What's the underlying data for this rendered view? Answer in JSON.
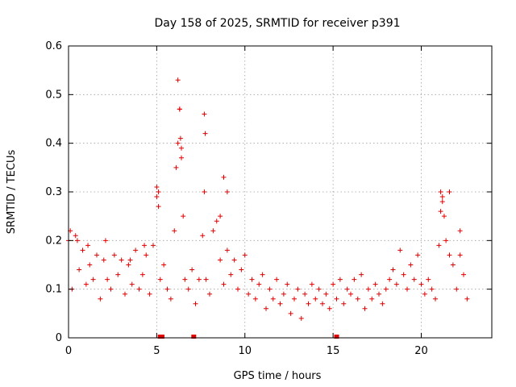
{
  "chart_data": {
    "type": "scatter",
    "title": "Day 158 of 2025, SRMTID for receiver p391",
    "xlabel": "GPS time / hours",
    "ylabel": "SRMTID / TECUs",
    "xlim": [
      0,
      24
    ],
    "ylim": [
      0,
      0.6
    ],
    "x_ticks": [
      0,
      5,
      10,
      15,
      20
    ],
    "x_tick_labels": [
      "0",
      "5",
      "10",
      "15",
      "20"
    ],
    "y_ticks": [
      0,
      0.1,
      0.2,
      0.3,
      0.4,
      0.5,
      0.6
    ],
    "y_tick_labels": [
      "0",
      "0.1",
      "0.2",
      "0.3",
      "0.4",
      "0.5",
      "0.6"
    ],
    "grid": true,
    "marker": "plus",
    "color": "#e00000",
    "series": [
      {
        "name": "SRMTID",
        "x": [
          0.0,
          0.2,
          0.4,
          0.6,
          0.8,
          1.0,
          1.2,
          1.4,
          1.6,
          1.8,
          2.0,
          2.2,
          2.4,
          2.6,
          2.8,
          3.0,
          3.2,
          3.4,
          3.6,
          3.8,
          4.0,
          4.2,
          4.4,
          4.6,
          4.8,
          5.0,
          5.1,
          5.2,
          5.4,
          5.6,
          5.8,
          6.0,
          6.1,
          6.2,
          6.3,
          6.4,
          6.5,
          6.6,
          6.8,
          7.0,
          7.2,
          7.4,
          7.6,
          7.7,
          7.8,
          8.0,
          8.2,
          8.4,
          8.6,
          8.8,
          9.0,
          9.2,
          9.4,
          9.6,
          9.8,
          10.0,
          10.2,
          10.4,
          10.6,
          10.8,
          11.0,
          11.2,
          11.4,
          11.6,
          11.8,
          12.0,
          12.2,
          12.4,
          12.6,
          12.8,
          13.0,
          13.2,
          13.4,
          13.6,
          13.8,
          14.0,
          14.2,
          14.4,
          14.6,
          14.8,
          15.0,
          15.2,
          15.4,
          15.6,
          15.8,
          16.0,
          16.2,
          16.4,
          16.6,
          16.8,
          17.0,
          17.2,
          17.4,
          17.6,
          17.8,
          18.0,
          18.2,
          18.4,
          18.6,
          18.8,
          19.0,
          19.2,
          19.4,
          19.6,
          19.8,
          20.0,
          20.2,
          20.4,
          20.6,
          20.8,
          21.0,
          21.1,
          21.2,
          21.4,
          21.6,
          21.8,
          22.0,
          22.2,
          22.4,
          22.6,
          0.1,
          0.5,
          1.1,
          2.1,
          3.5,
          4.3,
          5.0,
          5.1,
          6.2,
          6.3,
          6.35,
          6.4,
          7.7,
          7.75,
          8.6,
          8.8,
          9.0,
          21.1,
          21.2,
          21.3,
          21.6,
          22.2
        ],
        "y": [
          0.2,
          0.1,
          0.21,
          0.14,
          0.18,
          0.11,
          0.15,
          0.12,
          0.17,
          0.08,
          0.16,
          0.12,
          0.1,
          0.17,
          0.13,
          0.16,
          0.09,
          0.15,
          0.11,
          0.18,
          0.1,
          0.13,
          0.17,
          0.09,
          0.19,
          0.29,
          0.27,
          0.12,
          0.15,
          0.1,
          0.08,
          0.22,
          0.35,
          0.4,
          0.47,
          0.37,
          0.25,
          0.12,
          0.1,
          0.14,
          0.07,
          0.12,
          0.21,
          0.3,
          0.12,
          0.09,
          0.22,
          0.24,
          0.16,
          0.11,
          0.18,
          0.13,
          0.16,
          0.1,
          0.14,
          0.17,
          0.09,
          0.12,
          0.08,
          0.11,
          0.13,
          0.06,
          0.1,
          0.08,
          0.12,
          0.07,
          0.09,
          0.11,
          0.05,
          0.08,
          0.1,
          0.04,
          0.09,
          0.07,
          0.11,
          0.08,
          0.1,
          0.07,
          0.09,
          0.06,
          0.11,
          0.08,
          0.12,
          0.07,
          0.1,
          0.09,
          0.12,
          0.08,
          0.13,
          0.06,
          0.1,
          0.08,
          0.11,
          0.09,
          0.07,
          0.1,
          0.12,
          0.14,
          0.11,
          0.18,
          0.13,
          0.1,
          0.15,
          0.12,
          0.17,
          0.11,
          0.09,
          0.12,
          0.1,
          0.08,
          0.19,
          0.26,
          0.29,
          0.2,
          0.17,
          0.15,
          0.1,
          0.17,
          0.13,
          0.08,
          0.22,
          0.2,
          0.19,
          0.2,
          0.16,
          0.19,
          0.31,
          0.3,
          0.53,
          0.47,
          0.41,
          0.39,
          0.46,
          0.42,
          0.25,
          0.33,
          0.3,
          0.3,
          0.28,
          0.25,
          0.3,
          0.22
        ]
      }
    ],
    "gap_markers_hours": [
      5.2,
      5.3,
      7.1,
      15.2
    ]
  }
}
